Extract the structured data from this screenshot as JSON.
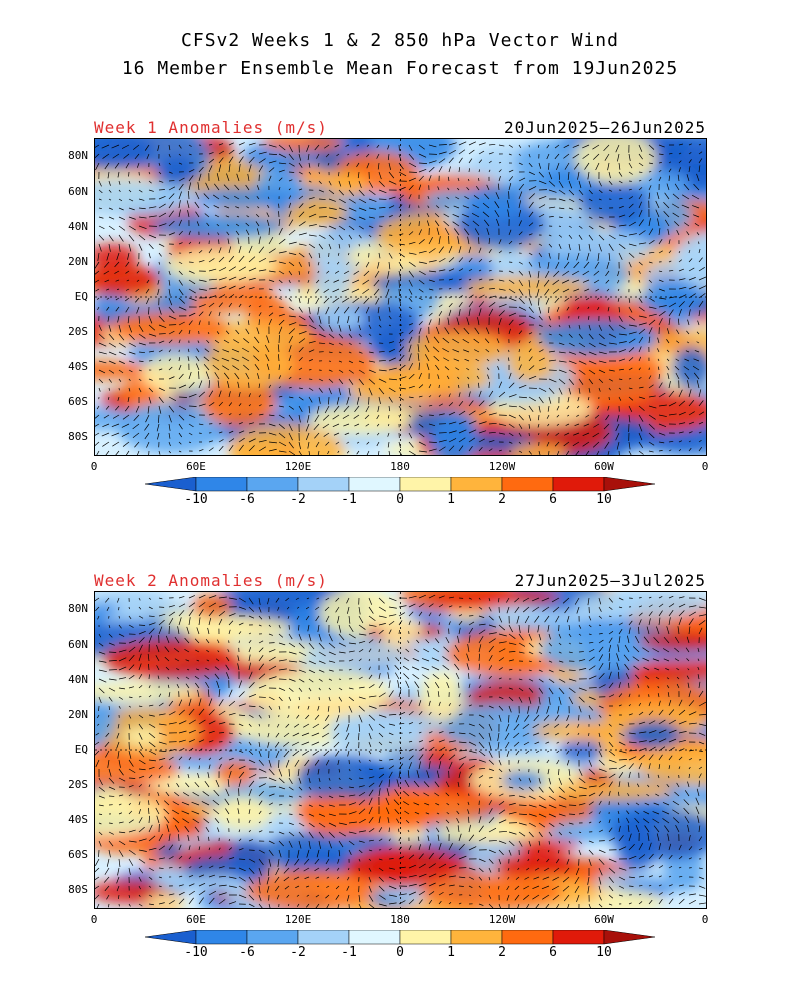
{
  "title_line1": "CFSv2 Weeks 1 & 2 850 hPa Vector Wind",
  "title_line2": "16 Member Ensemble Mean Forecast from 19Jun2025",
  "panels": [
    {
      "label": "Week 1 Anomalies (m/s)",
      "dates": "20Jun2025—26Jun2025"
    },
    {
      "label": "Week 2 Anomalies (m/s)",
      "dates": "27Jun2025—3Jul2025"
    }
  ],
  "lat_labels": [
    "80N",
    "60N",
    "40N",
    "20N",
    "EQ",
    "20S",
    "40S",
    "60S",
    "80S"
  ],
  "lon_labels": [
    "0",
    "60E",
    "120E",
    "180",
    "120W",
    "60W",
    "0"
  ],
  "colorbar": {
    "labels": [
      "-10",
      "-6",
      "-2",
      "-1",
      "0",
      "1",
      "2",
      "6",
      "10"
    ],
    "colors": [
      "#1a5fcf",
      "#2f86e8",
      "#5aa6f0",
      "#a4d2f8",
      "#e0f7ff",
      "#fff4a8",
      "#ffb43c",
      "#ff6a10",
      "#e01a0a",
      "#a8100a"
    ]
  }
}
